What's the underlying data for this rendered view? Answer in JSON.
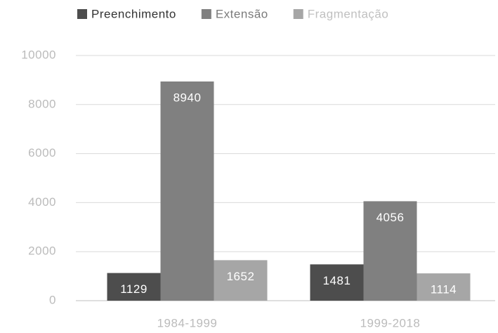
{
  "chart_data": {
    "type": "bar",
    "categories": [
      "1984-1999",
      "1999-2018"
    ],
    "series": [
      {
        "name": "Preenchimento",
        "color": "#4d4d4d",
        "values": [
          1129,
          1481
        ]
      },
      {
        "name": "Extensão",
        "color": "#808080",
        "values": [
          8940,
          4056
        ]
      },
      {
        "name": "Fragmentação",
        "color": "#a6a6a6",
        "values": [
          1652,
          1114
        ]
      }
    ],
    "ylim": [
      0,
      10000
    ],
    "yticks": [
      0,
      2000,
      4000,
      6000,
      8000,
      10000
    ],
    "grid": true,
    "legend": "top"
  }
}
